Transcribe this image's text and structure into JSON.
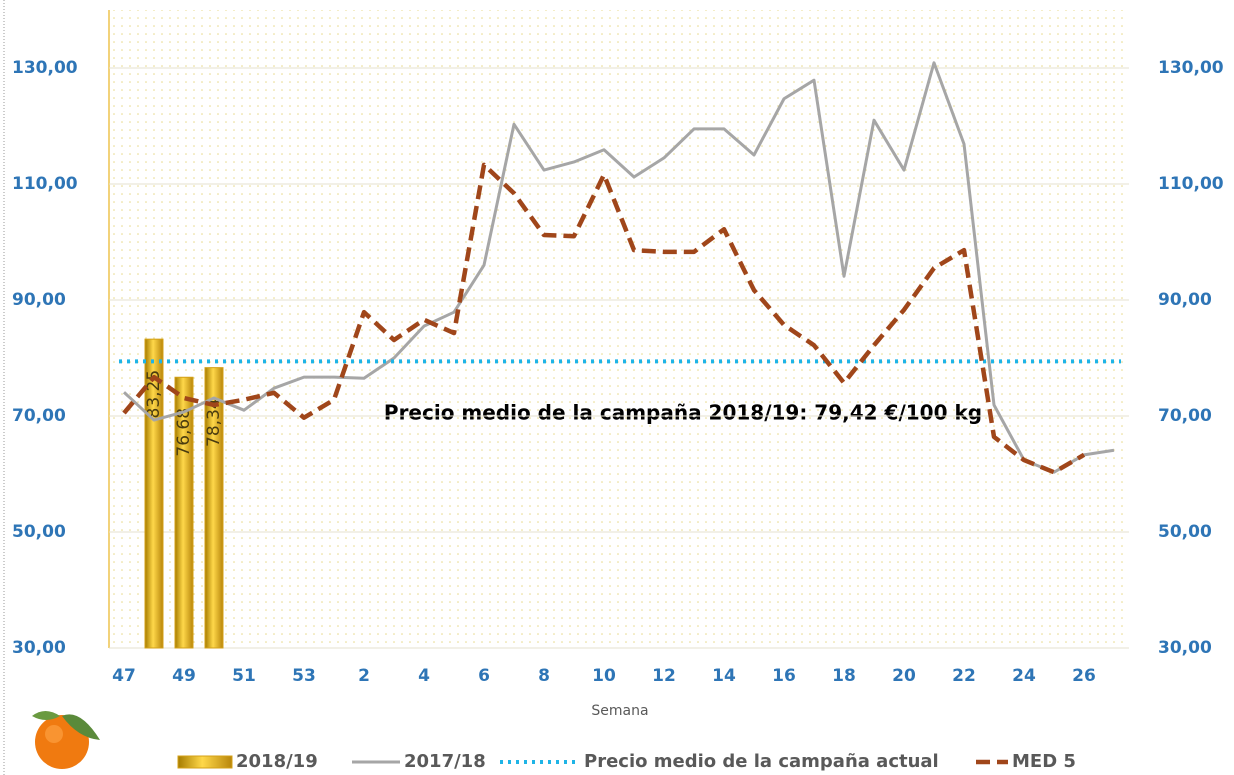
{
  "chart_data": {
    "type": "bar-line",
    "x_label": "Semana",
    "annotation": "Precio medio de la campaña 2018/19: 79,42 €/100 kg",
    "categories": [
      "47",
      null,
      "49",
      null,
      "51",
      null,
      "53",
      null,
      "2",
      null,
      "4",
      null,
      "6",
      null,
      "8",
      null,
      "10",
      null,
      "12",
      null,
      "14",
      null,
      "16",
      null,
      "18",
      null,
      "20",
      null,
      "22",
      null,
      "24",
      null,
      "26",
      null
    ],
    "ylim": [
      30,
      140
    ],
    "yticks": [
      {
        "value": 30,
        "label": "30,00"
      },
      {
        "value": 50,
        "label": "50,00"
      },
      {
        "value": 70,
        "label": "70,00"
      },
      {
        "value": 90,
        "label": "90,00"
      },
      {
        "value": 110,
        "label": "110,00"
      },
      {
        "value": 130,
        "label": "130,00"
      }
    ],
    "y2lim": [
      30,
      140
    ],
    "y2ticks": [
      {
        "value": 30,
        "label": "30,00"
      },
      {
        "value": 50,
        "label": "50,00"
      },
      {
        "value": 70,
        "label": "70,00"
      },
      {
        "value": 90,
        "label": "90,00"
      },
      {
        "value": 110,
        "label": "110,00"
      },
      {
        "value": 130,
        "label": "130,00"
      }
    ],
    "grid": true,
    "legend": "bottom",
    "series": [
      {
        "name": "2018/19",
        "kind": "bar",
        "color": "#d4a017",
        "values": [
          null,
          83.25,
          76.68,
          78.34,
          null,
          null,
          null,
          null,
          null,
          null,
          null,
          null,
          null,
          null,
          null,
          null,
          null,
          null,
          null,
          null,
          null,
          null,
          null,
          null,
          null,
          null,
          null,
          null,
          null,
          null,
          null,
          null,
          null,
          null
        ],
        "value_labels": [
          null,
          "83,25",
          "76,68",
          "78,34",
          null,
          null,
          null,
          null,
          null,
          null,
          null,
          null,
          null,
          null,
          null,
          null,
          null,
          null,
          null,
          null,
          null,
          null,
          null,
          null,
          null,
          null,
          null,
          null,
          null,
          null,
          null,
          null,
          null,
          null
        ]
      },
      {
        "name": "2017/18",
        "kind": "line",
        "style": "solid",
        "color": "#a6a6a6",
        "values": [
          74.1,
          69.3,
          70.7,
          73.1,
          71,
          74.8,
          76.7,
          76.7,
          76.5,
          80,
          85.5,
          87.9,
          96,
          120.3,
          112.4,
          113.8,
          115.9,
          111.2,
          114.5,
          119.5,
          119.5,
          115,
          124.7,
          127.9,
          94.1,
          121,
          112.4,
          130.9,
          116.9,
          71.9,
          62.4,
          60.3,
          63.3,
          64.1
        ]
      },
      {
        "name": "Precio medio de la campaña actual",
        "kind": "hline",
        "style": "dotted",
        "color": "#1fb4e6",
        "value": 79.42
      },
      {
        "name": "MED 5",
        "kind": "line",
        "style": "dashed",
        "color": "#a0461a",
        "values": [
          70.5,
          76.7,
          73.1,
          71.9,
          72.8,
          74,
          69.7,
          72.8,
          87.9,
          83.1,
          86.6,
          84.3,
          113.3,
          108.4,
          101.2,
          101,
          111.6,
          98.6,
          98.3,
          98.3,
          102.2,
          91.7,
          85.7,
          82.2,
          75.7,
          82.2,
          88.3,
          95.5,
          98.6,
          66.4,
          62.4,
          60.3,
          63.3,
          null
        ]
      }
    ]
  }
}
